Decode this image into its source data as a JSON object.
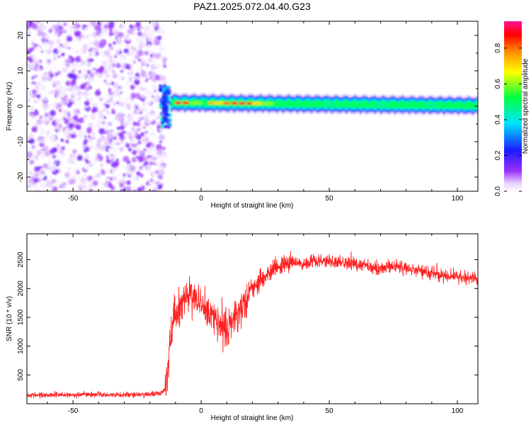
{
  "title": "PAZ1.2025.072.04.40.G23",
  "chart_data": [
    {
      "type": "heatmap",
      "xlabel": "Height of straight line (km)",
      "ylabel": "Frequency (Hz)",
      "xlim": [
        -68,
        108
      ],
      "ylim": [
        -24,
        24
      ],
      "xticks": [
        -50,
        0,
        50,
        100
      ],
      "yticks": [
        -20,
        -10,
        0,
        10,
        20
      ],
      "colorbar": {
        "label": "Normalized spectral amplitude",
        "range": [
          0,
          0.95
        ],
        "ticks": [
          0.0,
          0.2,
          0.4,
          0.6,
          0.8
        ],
        "colormap": [
          "#ffffff",
          "#e4ccff",
          "#9b30ff",
          "#1a1aff",
          "#00e5ff",
          "#00ff40",
          "#ffff00",
          "#ff8c00",
          "#ff0000",
          "#ff1493"
        ]
      },
      "regions": [
        {
          "name": "noise",
          "x_range": [
            -68,
            -14
          ],
          "freq_range": [
            -24,
            24
          ],
          "amplitude": [
            0.0,
            0.15
          ]
        },
        {
          "name": "transition",
          "x_range": [
            -16,
            -12
          ],
          "freq_range": [
            -6,
            6
          ],
          "amplitude": [
            0.15,
            0.45
          ]
        },
        {
          "name": "carrier",
          "x_range": [
            -12,
            108
          ],
          "freq_center": [
            1.0,
            0.2
          ],
          "freq_halfwidth": 2.0,
          "core_amplitude": [
            0.95,
            0.5
          ]
        }
      ]
    },
    {
      "type": "line",
      "xlabel": "Height of straight line (km)",
      "ylabel": "SNR (10 * v/v)",
      "xlim": [
        -68,
        108
      ],
      "ylim": [
        0,
        2950
      ],
      "xticks": [
        -50,
        0,
        50,
        100
      ],
      "yticks": [
        500,
        1000,
        1500,
        2000,
        2500
      ],
      "color": "#ff2020",
      "profile": {
        "x": [
          -68,
          -20,
          -16,
          -14,
          -13,
          -12,
          -11,
          -10,
          -9,
          -8,
          -6,
          -4,
          -2,
          0,
          2,
          4,
          6,
          8,
          10,
          12,
          14,
          16,
          18,
          20,
          24,
          28,
          32,
          36,
          40,
          44,
          48,
          52,
          56,
          60,
          64,
          70,
          76,
          82,
          88,
          94,
          100,
          104,
          108
        ],
        "y": [
          150,
          160,
          180,
          250,
          600,
          1100,
          1500,
          1600,
          1500,
          1700,
          1850,
          1900,
          1800,
          1750,
          1650,
          1500,
          1450,
          1350,
          1300,
          1400,
          1550,
          1700,
          1850,
          2000,
          2200,
          2300,
          2400,
          2450,
          2430,
          2480,
          2480,
          2450,
          2450,
          2420,
          2400,
          2350,
          2380,
          2330,
          2280,
          2230,
          2200,
          2180,
          2150
        ]
      }
    }
  ]
}
